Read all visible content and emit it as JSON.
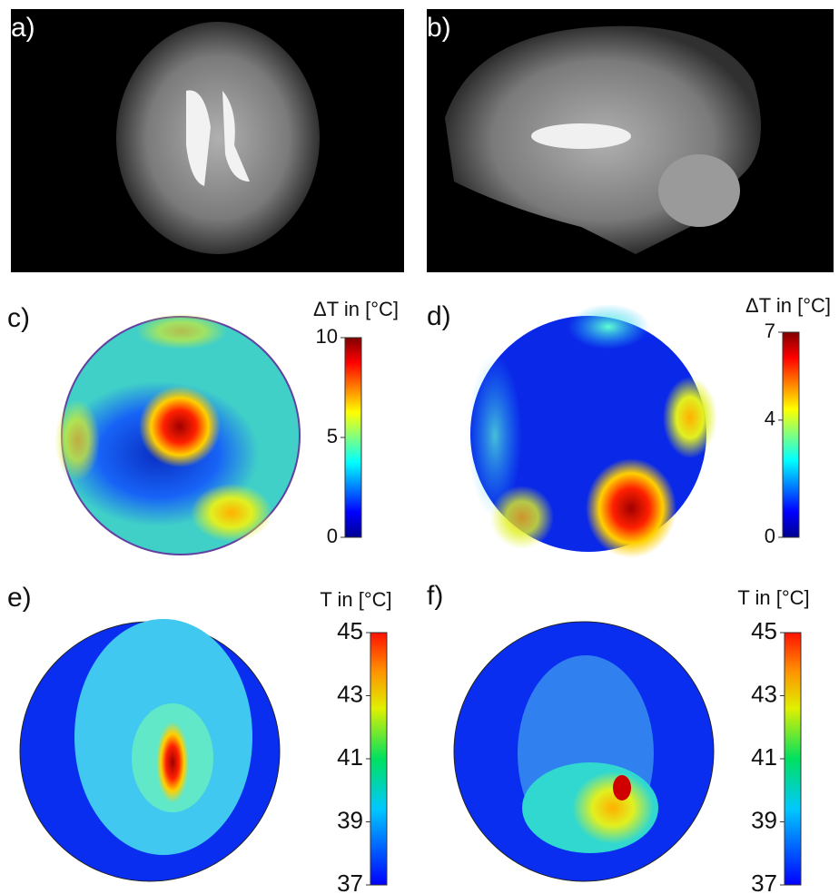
{
  "panels": [
    {
      "label": "a)"
    },
    {
      "label": "b)"
    },
    {
      "label": "c)",
      "colorbar": {
        "title": "ΔT in [°C]",
        "lim": [
          0,
          10
        ],
        "ticks": [
          0,
          5,
          10
        ]
      }
    },
    {
      "label": "d)",
      "colorbar": {
        "title": "ΔT in [°C]",
        "lim": [
          0,
          7
        ],
        "ticks": [
          0,
          4,
          7
        ]
      }
    },
    {
      "label": "e)",
      "colorbar": {
        "title": "T in [°C]",
        "lim": [
          37,
          45
        ],
        "ticks": [
          37,
          39,
          41,
          43,
          45
        ]
      }
    },
    {
      "label": "f)",
      "colorbar": {
        "title": "T in [°C]",
        "lim": [
          37,
          45
        ],
        "ticks": [
          37,
          39,
          41,
          43,
          45
        ]
      }
    }
  ]
}
